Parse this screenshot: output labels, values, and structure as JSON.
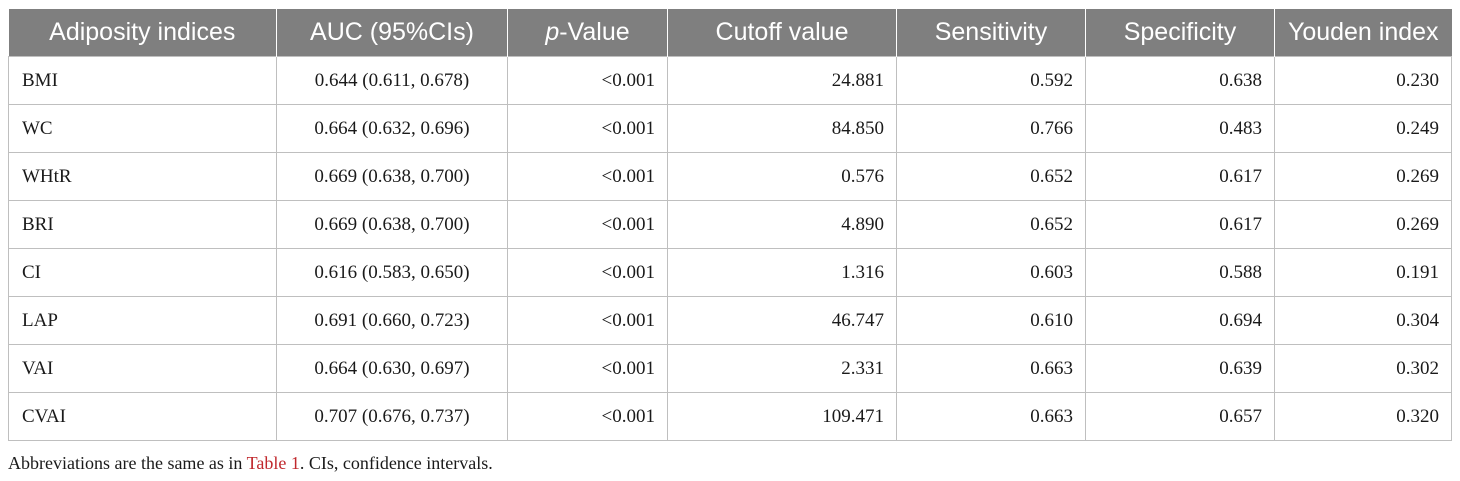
{
  "table": {
    "headers": {
      "adiposity": "Adiposity indices",
      "auc": "AUC (95%CIs)",
      "p_italic": "p",
      "p_rest": "-Value",
      "cutoff": "Cutoff value",
      "sensitivity": "Sensitivity",
      "specificity": "Specificity",
      "youden": "Youden index"
    },
    "rows": [
      {
        "index": "BMI",
        "auc": "0.644 (0.611, 0.678)",
        "p": "<0.001",
        "cutoff": "24.881",
        "sensitivity": "0.592",
        "specificity": "0.638",
        "youden": "0.230"
      },
      {
        "index": "WC",
        "auc": "0.664 (0.632, 0.696)",
        "p": "<0.001",
        "cutoff": "84.850",
        "sensitivity": "0.766",
        "specificity": "0.483",
        "youden": "0.249"
      },
      {
        "index": "WHtR",
        "auc": "0.669 (0.638, 0.700)",
        "p": "<0.001",
        "cutoff": "0.576",
        "sensitivity": "0.652",
        "specificity": "0.617",
        "youden": "0.269"
      },
      {
        "index": "BRI",
        "auc": "0.669 (0.638, 0.700)",
        "p": "<0.001",
        "cutoff": "4.890",
        "sensitivity": "0.652",
        "specificity": "0.617",
        "youden": "0.269"
      },
      {
        "index": "CI",
        "auc": "0.616 (0.583, 0.650)",
        "p": "<0.001",
        "cutoff": "1.316",
        "sensitivity": "0.603",
        "specificity": "0.588",
        "youden": "0.191"
      },
      {
        "index": "LAP",
        "auc": "0.691 (0.660, 0.723)",
        "p": "<0.001",
        "cutoff": "46.747",
        "sensitivity": "0.610",
        "specificity": "0.694",
        "youden": "0.304"
      },
      {
        "index": "VAI",
        "auc": "0.664 (0.630, 0.697)",
        "p": "<0.001",
        "cutoff": "2.331",
        "sensitivity": "0.663",
        "specificity": "0.639",
        "youden": "0.302"
      },
      {
        "index": "CVAI",
        "auc": "0.707 (0.676, 0.737)",
        "p": "<0.001",
        "cutoff": "109.471",
        "sensitivity": "0.663",
        "specificity": "0.657",
        "youden": "0.320"
      }
    ]
  },
  "footnote": {
    "before": "Abbreviations are the same as in ",
    "ref": "Table 1",
    "after": ". CIs, confidence intervals."
  },
  "colors": {
    "header_bg": "#7f7f7f",
    "header_text": "#ffffff",
    "grid": "#bfbfbf",
    "reference_link": "#c0282d"
  }
}
